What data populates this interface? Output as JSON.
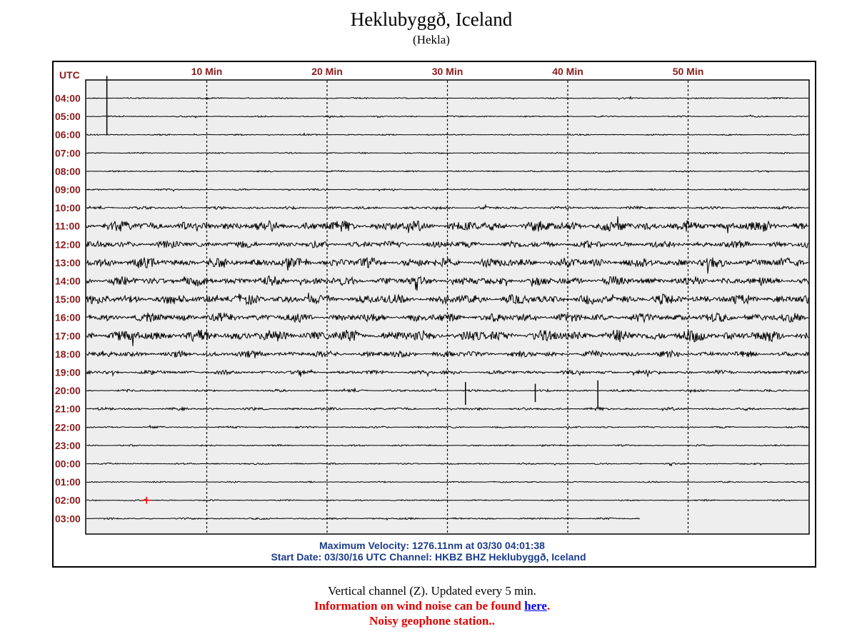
{
  "header": {
    "title": "Heklubyggð, Iceland",
    "subtitle": "(Hekla)"
  },
  "chart_data": {
    "type": "line",
    "time_zone_label": "UTC",
    "x_tick_labels": [
      "10 Min",
      "20 Min",
      "30 Min",
      "40 Min",
      "50 Min"
    ],
    "x_ticks_minutes": [
      10,
      20,
      30,
      40,
      50
    ],
    "x_range_minutes": [
      0,
      60
    ],
    "grid": "dashed vertical lines at each 10 minute mark",
    "rows": [
      {
        "label": "04:00",
        "intensity": 0.3,
        "spikes": [
          {
            "minute": 1.7,
            "amp": 1.3
          }
        ]
      },
      {
        "label": "05:00",
        "intensity": 0.3,
        "spikes": []
      },
      {
        "label": "06:00",
        "intensity": 0.3,
        "spikes": []
      },
      {
        "label": "07:00",
        "intensity": 0.3,
        "spikes": []
      },
      {
        "label": "08:00",
        "intensity": 0.3,
        "spikes": []
      },
      {
        "label": "09:00",
        "intensity": 0.35,
        "spikes": []
      },
      {
        "label": "10:00",
        "intensity": 0.6,
        "spikes": []
      },
      {
        "label": "11:00",
        "intensity": 2.4,
        "spikes": []
      },
      {
        "label": "12:00",
        "intensity": 1.6,
        "spikes": []
      },
      {
        "label": "13:00",
        "intensity": 2.2,
        "spikes": []
      },
      {
        "label": "14:00",
        "intensity": 2.0,
        "spikes": []
      },
      {
        "label": "15:00",
        "intensity": 2.2,
        "spikes": []
      },
      {
        "label": "16:00",
        "intensity": 2.0,
        "spikes": []
      },
      {
        "label": "17:00",
        "intensity": 2.6,
        "spikes": []
      },
      {
        "label": "18:00",
        "intensity": 1.4,
        "spikes": []
      },
      {
        "label": "19:00",
        "intensity": 0.9,
        "spikes": []
      },
      {
        "label": "20:00",
        "intensity": 0.5,
        "spikes": [
          {
            "minute": 31.5,
            "amp": 0.5
          },
          {
            "minute": 37.3,
            "amp": 0.4
          },
          {
            "minute": 42.5,
            "amp": 0.6
          }
        ]
      },
      {
        "label": "21:00",
        "intensity": 0.6,
        "spikes": []
      },
      {
        "label": "22:00",
        "intensity": 0.4,
        "spikes": []
      },
      {
        "label": "23:00",
        "intensity": 0.35,
        "spikes": []
      },
      {
        "label": "00:00",
        "intensity": 0.35,
        "spikes": []
      },
      {
        "label": "01:00",
        "intensity": 0.3,
        "spikes": []
      },
      {
        "label": "02:00",
        "intensity": 0.3,
        "spikes": [],
        "marker": {
          "minute": 5.0,
          "color": "#ff0000"
        }
      },
      {
        "label": "03:00",
        "intensity": 0.4,
        "spikes": [],
        "end_minute": 46.0
      }
    ],
    "colors": {
      "trace": "#000000",
      "labels": "#8b1a1a",
      "info": "#1a3c8c",
      "plot_bg": "#eeeeee"
    }
  },
  "info": {
    "max_velocity": "Maximum Velocity: 1276.11nm at 03/30 04:01:38",
    "start_date": "Start Date: 03/30/16 UTC Channel: HKBZ  BHZ  Heklubyggð, Iceland"
  },
  "footer": {
    "line1": "Vertical channel (Z). Updated every 5 min.",
    "line2_before": "Information on wind noise can be found ",
    "line2_link": "here",
    "line2_after": ".",
    "line3": "Noisy geophone station.."
  }
}
